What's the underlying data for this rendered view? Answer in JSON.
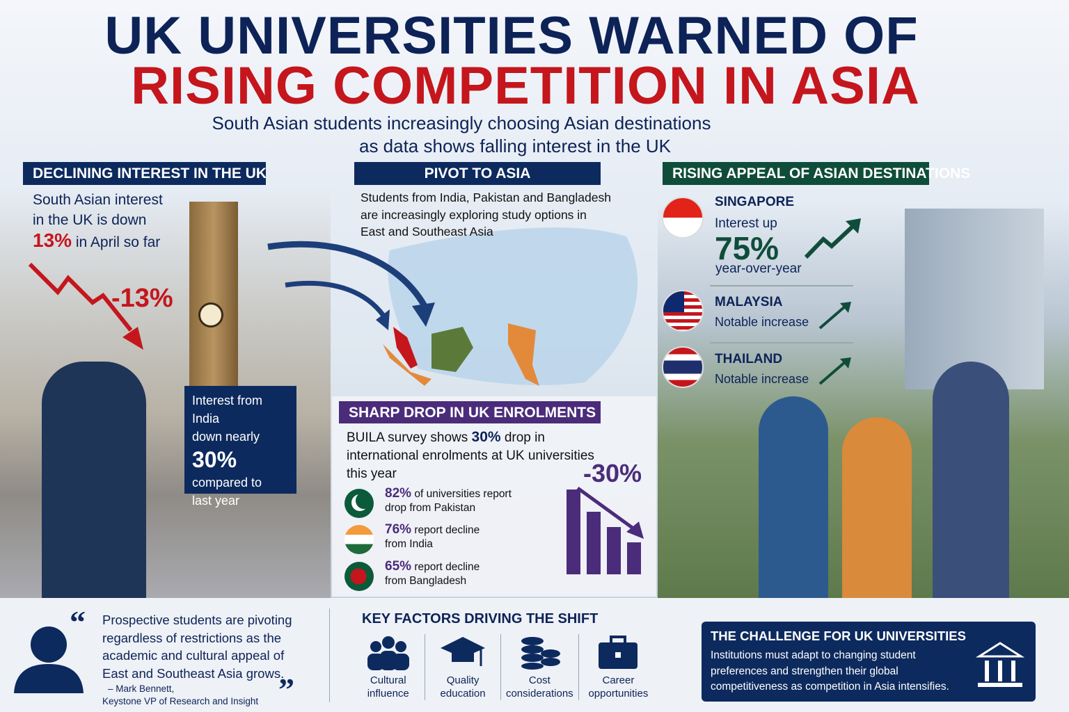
{
  "title": {
    "line1": "UK UNIVERSITIES WARNED OF",
    "line2": "RISING COMPETITION IN ASIA",
    "subtitle_line1": "South Asian students increasingly choosing Asian destinations",
    "subtitle_line2": "as data shows falling interest in the UK"
  },
  "declining": {
    "header": "DECLINING INTEREST IN THE UK",
    "text_line1": "South Asian interest",
    "text_line2": "in the UK is down",
    "percent": "13%",
    "text_suffix": "in April so far",
    "chart_label": "-13%",
    "india_box": {
      "line1": "Interest from India",
      "line2": "down nearly",
      "percent": "30%",
      "line3": "compared to",
      "line4": "last year"
    }
  },
  "pivot": {
    "header": "PIVOT TO ASIA",
    "text_line1": "Students from India, Pakistan and Bangladesh",
    "text_line2": "are increasingly exploring study options in",
    "text_line3": "East and Southeast Asia"
  },
  "rising": {
    "header": "RISING APPEAL OF ASIAN DESTINATIONS",
    "singapore": {
      "name": "SINGAPORE",
      "line1": "Interest up",
      "percent": "75%",
      "line2": "year-over-year"
    },
    "malaysia": {
      "name": "MALAYSIA",
      "text": "Notable increase"
    },
    "thailand": {
      "name": "THAILAND",
      "text": "Notable increase"
    }
  },
  "enrolments": {
    "header": "SHARP DROP IN UK ENROLMENTS",
    "text_pre": "BUILA survey shows",
    "text_percent": "30%",
    "text_post": "drop in",
    "text_line2": "international enrolments at UK universities",
    "text_line3": "this year",
    "chart_label": "-30%",
    "items": [
      {
        "percent": "82%",
        "text1": "of universities report",
        "text2": "drop from Pakistan",
        "flag": "pakistan"
      },
      {
        "percent": "76%",
        "text1": "report decline",
        "text2": "from India",
        "flag": "india"
      },
      {
        "percent": "65%",
        "text1": "report decline",
        "text2": "from Bangladesh",
        "flag": "bangladesh"
      }
    ]
  },
  "quote": {
    "text_lines": [
      "Prospective students are pivoting",
      "regardless of restrictions as the",
      "academic and cultural appeal of",
      "East and Southeast Asia grows."
    ],
    "author": "– Mark Bennett,",
    "role": "Keystone VP of Research and Insight"
  },
  "factors": {
    "header": "KEY FACTORS DRIVING THE SHIFT",
    "items": [
      {
        "line1": "Cultural",
        "line2": "influence",
        "icon": "people-icon"
      },
      {
        "line1": "Quality",
        "line2": "education",
        "icon": "graduation-cap-icon"
      },
      {
        "line1": "Cost",
        "line2": "considerations",
        "icon": "coins-icon"
      },
      {
        "line1": "Career",
        "line2": "opportunities",
        "icon": "briefcase-icon"
      }
    ]
  },
  "challenge": {
    "header": "THE CHALLENGE FOR UK UNIVERSITIES",
    "lines": [
      "Institutions must adapt to changing student",
      "preferences and strengthen their global",
      "competitiveness as competition in Asia intensifies."
    ]
  },
  "colors": {
    "navy": "#0d2357",
    "red": "#c4161c",
    "green": "#0f4d3a",
    "purple": "#4b2c7a"
  }
}
